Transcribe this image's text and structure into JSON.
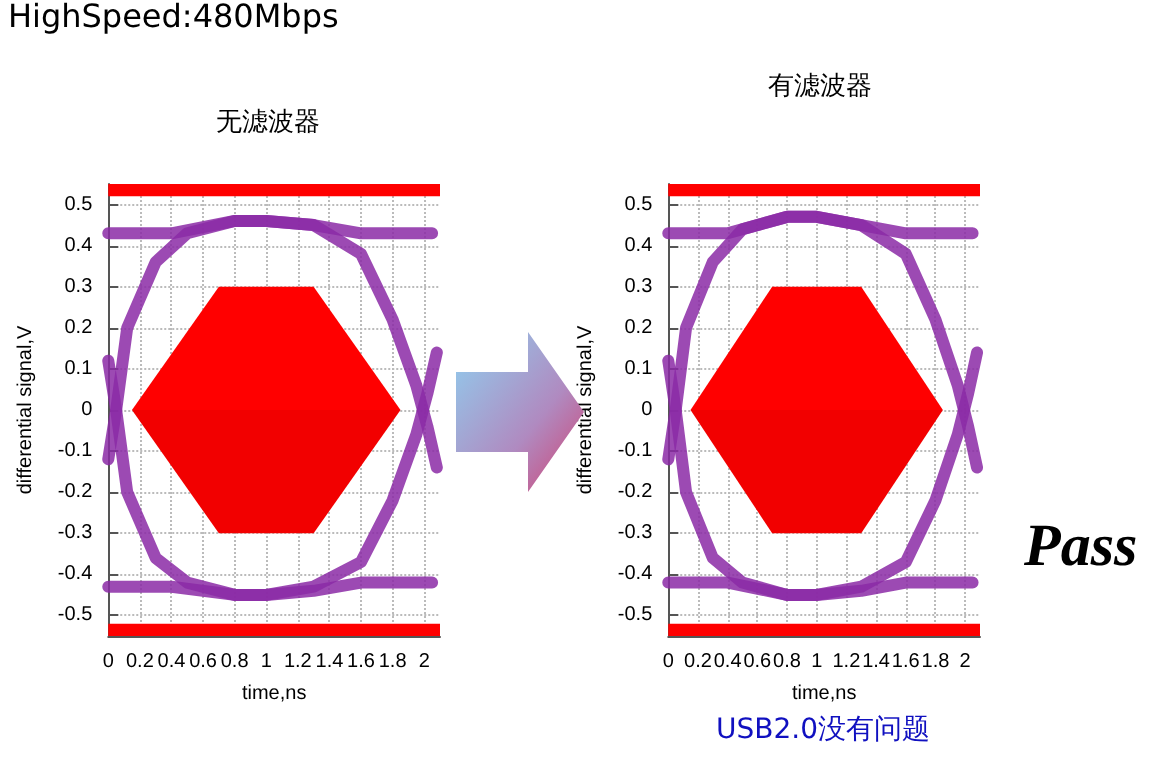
{
  "chart_data": [
    {
      "type": "line",
      "title": "无滤波器",
      "xlabel": "time,ns",
      "ylabel": "differential signal,V",
      "annotations": [
        "HighSpeed:480Mbps"
      ],
      "xlim": [
        0,
        2.1
      ],
      "ylim": [
        -0.55,
        0.55
      ],
      "xticks": [
        0,
        0.2,
        0.4,
        0.6,
        0.8,
        1,
        1.2,
        1.4,
        1.6,
        1.8,
        2
      ],
      "yticks": [
        -0.5,
        -0.4,
        -0.3,
        -0.2,
        -0.1,
        0,
        0.1,
        0.2,
        0.3,
        0.4,
        0.5
      ],
      "grid": true,
      "marker": "none",
      "line_style": "solid",
      "bands": [
        {
          "axis": "y",
          "from": 0.52,
          "to": 0.55,
          "color": "#ff0000"
        },
        {
          "axis": "y",
          "from": -0.55,
          "to": -0.52,
          "color": "#ff0000"
        }
      ],
      "series": [
        {
          "type": "area",
          "color": "#ff0000",
          "x": [
            0.15,
            0.7,
            1.3,
            1.85
          ],
          "values": [
            0,
            0.3,
            0.3,
            0
          ]
        },
        {
          "type": "area",
          "color": "#f20000",
          "x": [
            0.15,
            0.7,
            1.3,
            1.85
          ],
          "values": [
            0,
            -0.3,
            -0.3,
            0
          ]
        },
        {
          "color": "#8b2aa6",
          "x": [
            0,
            0.4,
            0.8,
            1.0,
            1.3,
            1.6,
            2.05
          ],
          "values": [
            0.43,
            0.43,
            0.46,
            0.46,
            0.45,
            0.43,
            0.43
          ]
        },
        {
          "color": "#8b2aa6",
          "x": [
            0,
            0.4,
            0.8,
            1.0,
            1.3,
            1.6,
            2.05
          ],
          "values": [
            -0.43,
            -0.43,
            -0.45,
            -0.45,
            -0.44,
            -0.42,
            -0.42
          ]
        },
        {
          "color": "#8b2aa6",
          "x": [
            0,
            0.05,
            0.12,
            0.3,
            0.5,
            0.8,
            1.0,
            1.3,
            1.6,
            1.8,
            1.95,
            2.02,
            2.08
          ],
          "values": [
            -0.12,
            0,
            0.2,
            0.36,
            0.43,
            0.46,
            0.46,
            0.45,
            0.38,
            0.22,
            0.06,
            -0.04,
            -0.14
          ]
        },
        {
          "color": "#8b2aa6",
          "x": [
            0,
            0.05,
            0.12,
            0.3,
            0.5,
            0.8,
            1.0,
            1.3,
            1.6,
            1.8,
            1.95,
            2.02,
            2.08
          ],
          "values": [
            0.12,
            0,
            -0.2,
            -0.36,
            -0.42,
            -0.45,
            -0.45,
            -0.43,
            -0.37,
            -0.22,
            -0.06,
            0.04,
            0.14
          ]
        }
      ]
    },
    {
      "type": "line",
      "title": "有滤波器",
      "xlabel": "time,ns",
      "ylabel": "differential signal,V",
      "annotations": [
        "Pass",
        "USB2.0没有问题"
      ],
      "xlim": [
        0,
        2.1
      ],
      "ylim": [
        -0.55,
        0.55
      ],
      "xticks": [
        0,
        0.2,
        0.4,
        0.6,
        0.8,
        1,
        1.2,
        1.4,
        1.6,
        1.8,
        2
      ],
      "yticks": [
        -0.5,
        -0.4,
        -0.3,
        -0.2,
        -0.1,
        0,
        0.1,
        0.2,
        0.3,
        0.4,
        0.5
      ],
      "grid": true,
      "marker": "none",
      "line_style": "solid",
      "bands": [
        {
          "axis": "y",
          "from": 0.52,
          "to": 0.55,
          "color": "#ff0000"
        },
        {
          "axis": "y",
          "from": -0.55,
          "to": -0.52,
          "color": "#ff0000"
        }
      ],
      "series": [
        {
          "type": "area",
          "color": "#ff0000",
          "x": [
            0.15,
            0.7,
            1.3,
            1.85
          ],
          "values": [
            0,
            0.3,
            0.3,
            0
          ]
        },
        {
          "type": "area",
          "color": "#f20000",
          "x": [
            0.15,
            0.7,
            1.3,
            1.85
          ],
          "values": [
            0,
            -0.3,
            -0.3,
            0
          ]
        },
        {
          "color": "#8b2aa6",
          "x": [
            0,
            0.4,
            0.8,
            1.0,
            1.3,
            1.6,
            2.05
          ],
          "values": [
            0.43,
            0.43,
            0.47,
            0.47,
            0.45,
            0.43,
            0.43
          ]
        },
        {
          "color": "#8b2aa6",
          "x": [
            0,
            0.4,
            0.8,
            1.0,
            1.3,
            1.6,
            2.05
          ],
          "values": [
            -0.42,
            -0.42,
            -0.45,
            -0.45,
            -0.44,
            -0.42,
            -0.42
          ]
        },
        {
          "color": "#8b2aa6",
          "x": [
            0,
            0.05,
            0.12,
            0.3,
            0.5,
            0.8,
            1.0,
            1.3,
            1.6,
            1.8,
            1.95,
            2.02,
            2.08
          ],
          "values": [
            -0.12,
            0,
            0.2,
            0.36,
            0.44,
            0.47,
            0.47,
            0.45,
            0.38,
            0.22,
            0.06,
            -0.04,
            -0.14
          ]
        },
        {
          "color": "#8b2aa6",
          "x": [
            0,
            0.05,
            0.12,
            0.3,
            0.5,
            0.8,
            1.0,
            1.3,
            1.6,
            1.8,
            1.95,
            2.02,
            2.08
          ],
          "values": [
            0.12,
            0,
            -0.2,
            -0.36,
            -0.42,
            -0.45,
            -0.45,
            -0.43,
            -0.37,
            -0.22,
            -0.06,
            0.04,
            0.14
          ]
        }
      ]
    }
  ]
}
